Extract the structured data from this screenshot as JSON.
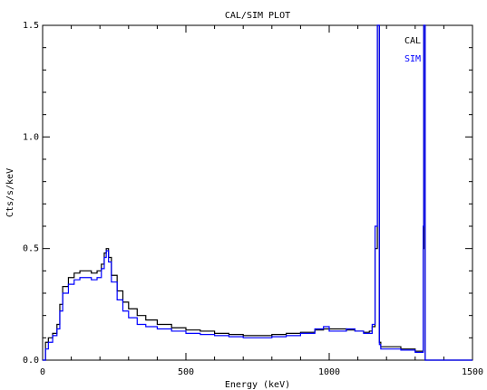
{
  "chart_data": {
    "type": "line",
    "title": "CAL/SIM PLOT",
    "xlabel": "Energy (keV)",
    "ylabel": "Cts/s/keV",
    "xlim": [
      0,
      1500
    ],
    "ylim": [
      0.0,
      1.5
    ],
    "x_ticks": [
      0,
      500,
      1000,
      1500
    ],
    "y_ticks": [
      0.0,
      0.5,
      1.0,
      1.5
    ],
    "x_tick_labels": [
      "0",
      "500",
      "1000",
      "1500"
    ],
    "y_tick_labels": [
      "0.0",
      "0.5",
      "1.0",
      "1.5"
    ],
    "legend_position": "top-right",
    "series": [
      {
        "name": "CAL",
        "color": "#000000",
        "x": [
          0,
          10,
          20,
          35,
          50,
          60,
          70,
          90,
          110,
          130,
          150,
          170,
          190,
          205,
          215,
          222,
          230,
          240,
          260,
          280,
          300,
          330,
          360,
          400,
          450,
          500,
          550,
          600,
          650,
          700,
          750,
          800,
          850,
          900,
          950,
          980,
          1000,
          1030,
          1060,
          1090,
          1120,
          1140,
          1150,
          1160,
          1168,
          1170,
          1172,
          1175,
          1180,
          1200,
          1250,
          1300,
          1320,
          1328,
          1330,
          1332,
          1335,
          1345,
          1360,
          1400,
          1500
        ],
        "y": [
          0.0,
          0.08,
          0.1,
          0.12,
          0.16,
          0.25,
          0.33,
          0.37,
          0.39,
          0.4,
          0.4,
          0.39,
          0.4,
          0.43,
          0.48,
          0.5,
          0.46,
          0.38,
          0.31,
          0.26,
          0.23,
          0.2,
          0.18,
          0.16,
          0.145,
          0.135,
          0.13,
          0.12,
          0.115,
          0.11,
          0.11,
          0.115,
          0.12,
          0.125,
          0.135,
          0.14,
          0.14,
          0.14,
          0.135,
          0.13,
          0.125,
          0.13,
          0.15,
          0.5,
          1.5,
          1.5,
          1.5,
          0.08,
          0.06,
          0.06,
          0.05,
          0.04,
          0.04,
          0.5,
          1.5,
          1.5,
          0.0,
          0.0,
          0.0,
          0.0,
          0.0
        ]
      },
      {
        "name": "SIM",
        "color": "#0000ff",
        "x": [
          0,
          10,
          20,
          35,
          50,
          60,
          70,
          90,
          110,
          130,
          150,
          170,
          190,
          205,
          215,
          222,
          230,
          240,
          260,
          280,
          300,
          330,
          360,
          400,
          450,
          500,
          550,
          600,
          650,
          700,
          750,
          800,
          850,
          900,
          950,
          980,
          1000,
          1030,
          1060,
          1090,
          1120,
          1140,
          1150,
          1160,
          1168,
          1170,
          1172,
          1175,
          1180,
          1200,
          1250,
          1300,
          1320,
          1328,
          1330,
          1332,
          1335,
          1345,
          1360,
          1400,
          1500
        ],
        "y": [
          0.0,
          0.05,
          0.08,
          0.11,
          0.14,
          0.22,
          0.3,
          0.34,
          0.36,
          0.37,
          0.37,
          0.36,
          0.37,
          0.41,
          0.46,
          0.49,
          0.44,
          0.35,
          0.27,
          0.22,
          0.19,
          0.16,
          0.15,
          0.14,
          0.13,
          0.12,
          0.115,
          0.11,
          0.105,
          0.1,
          0.1,
          0.105,
          0.11,
          0.12,
          0.14,
          0.15,
          0.13,
          0.13,
          0.14,
          0.13,
          0.12,
          0.12,
          0.16,
          0.6,
          1.5,
          1.5,
          1.5,
          0.07,
          0.05,
          0.05,
          0.045,
          0.035,
          0.035,
          0.6,
          1.5,
          1.5,
          0.0,
          0.0,
          0.0,
          0.0,
          0.0
        ]
      }
    ]
  }
}
